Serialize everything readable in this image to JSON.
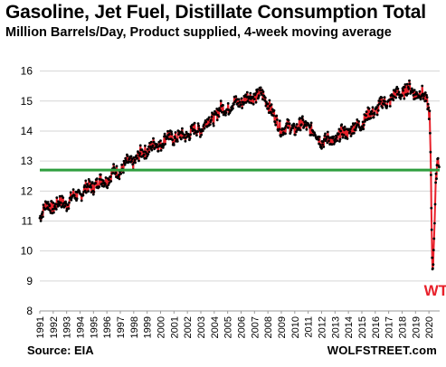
{
  "header": {
    "title": "Gasoline, Jet Fuel, Distillate Consumption Total",
    "subtitle": "Million Barrels/Day, Product supplied, 4-week moving average"
  },
  "footer": {
    "source": "Source: EIA",
    "brand": "WOLFSTREET.com"
  },
  "chart_data": {
    "type": "line",
    "title": "Gasoline, Jet Fuel, Distillate Consumption Total",
    "subtitle": "Million Barrels/Day, Product supplied, 4-week moving average",
    "xlabel": "",
    "ylabel": "",
    "xlim": [
      1991,
      2020.8
    ],
    "ylim": [
      8,
      16.2
    ],
    "yticks": [
      8,
      9,
      10,
      11,
      12,
      13,
      14,
      15,
      16
    ],
    "xticks": [
      "1991",
      "1992",
      "1993",
      "1994",
      "1995",
      "1996",
      "1997",
      "1998",
      "1999",
      "2000",
      "2001",
      "2002",
      "2003",
      "2004",
      "2005",
      "2006",
      "2007",
      "2008",
      "2009",
      "2010",
      "2011",
      "2012",
      "2013",
      "2014",
      "2015",
      "2016",
      "2017",
      "2018",
      "2019",
      "2020"
    ],
    "grid": true,
    "legend": "none",
    "series": [
      {
        "values": [
          [
            1991.0,
            11.1
          ],
          [
            1991.5,
            11.6
          ],
          [
            1992.0,
            11.4
          ],
          [
            1992.5,
            11.7
          ],
          [
            1993.0,
            11.5
          ],
          [
            1993.5,
            11.9
          ],
          [
            1994.0,
            11.8
          ],
          [
            1994.5,
            12.2
          ],
          [
            1995.0,
            12.1
          ],
          [
            1995.5,
            12.4
          ],
          [
            1996.0,
            12.3
          ],
          [
            1996.5,
            12.7
          ],
          [
            1997.0,
            12.6
          ],
          [
            1997.5,
            13.0
          ],
          [
            1998.0,
            12.9
          ],
          [
            1998.5,
            13.3
          ],
          [
            1999.0,
            13.3
          ],
          [
            1999.5,
            13.6
          ],
          [
            2000.0,
            13.5
          ],
          [
            2000.5,
            13.9
          ],
          [
            2001.0,
            13.7
          ],
          [
            2001.5,
            13.9
          ],
          [
            2002.0,
            13.8
          ],
          [
            2002.5,
            14.1
          ],
          [
            2003.0,
            14.0
          ],
          [
            2003.5,
            14.4
          ],
          [
            2004.0,
            14.4
          ],
          [
            2004.5,
            14.8
          ],
          [
            2005.0,
            14.7
          ],
          [
            2005.5,
            15.0
          ],
          [
            2006.0,
            14.9
          ],
          [
            2006.5,
            15.2
          ],
          [
            2007.0,
            15.1
          ],
          [
            2007.5,
            15.3
          ],
          [
            2008.0,
            14.9
          ],
          [
            2008.5,
            14.5
          ],
          [
            2009.0,
            14.0
          ],
          [
            2009.5,
            14.2
          ],
          [
            2010.0,
            14.0
          ],
          [
            2010.5,
            14.3
          ],
          [
            2011.0,
            14.1
          ],
          [
            2011.5,
            14.0
          ],
          [
            2012.0,
            13.6
          ],
          [
            2012.5,
            13.8
          ],
          [
            2013.0,
            13.6
          ],
          [
            2013.5,
            14.0
          ],
          [
            2014.0,
            13.9
          ],
          [
            2014.5,
            14.2
          ],
          [
            2015.0,
            14.2
          ],
          [
            2015.5,
            14.6
          ],
          [
            2016.0,
            14.6
          ],
          [
            2016.5,
            15.0
          ],
          [
            2017.0,
            14.9
          ],
          [
            2017.5,
            15.3
          ],
          [
            2018.0,
            15.2
          ],
          [
            2018.5,
            15.5
          ],
          [
            2019.0,
            15.2
          ],
          [
            2019.5,
            15.3
          ],
          [
            2019.9,
            14.9
          ],
          [
            2020.05,
            14.5
          ],
          [
            2020.12,
            13.2
          ],
          [
            2020.18,
            11.5
          ],
          [
            2020.24,
            9.9
          ],
          [
            2020.29,
            9.25
          ],
          [
            2020.35,
            10.1
          ],
          [
            2020.42,
            11.0
          ],
          [
            2020.5,
            12.1
          ],
          [
            2020.6,
            12.9
          ],
          [
            2020.68,
            13.2
          ],
          [
            2020.76,
            12.8
          ]
        ]
      }
    ],
    "reference_line": {
      "y": 12.7,
      "color": "#2e9e3e"
    },
    "annotations": [
      {
        "text": "WTF",
        "x": 2020.2,
        "y": 8.7
      }
    ],
    "colors": {
      "line": "#e8202a",
      "markers": "#000000",
      "reference": "#2e9e3e",
      "annotation": "#e8202a"
    }
  }
}
